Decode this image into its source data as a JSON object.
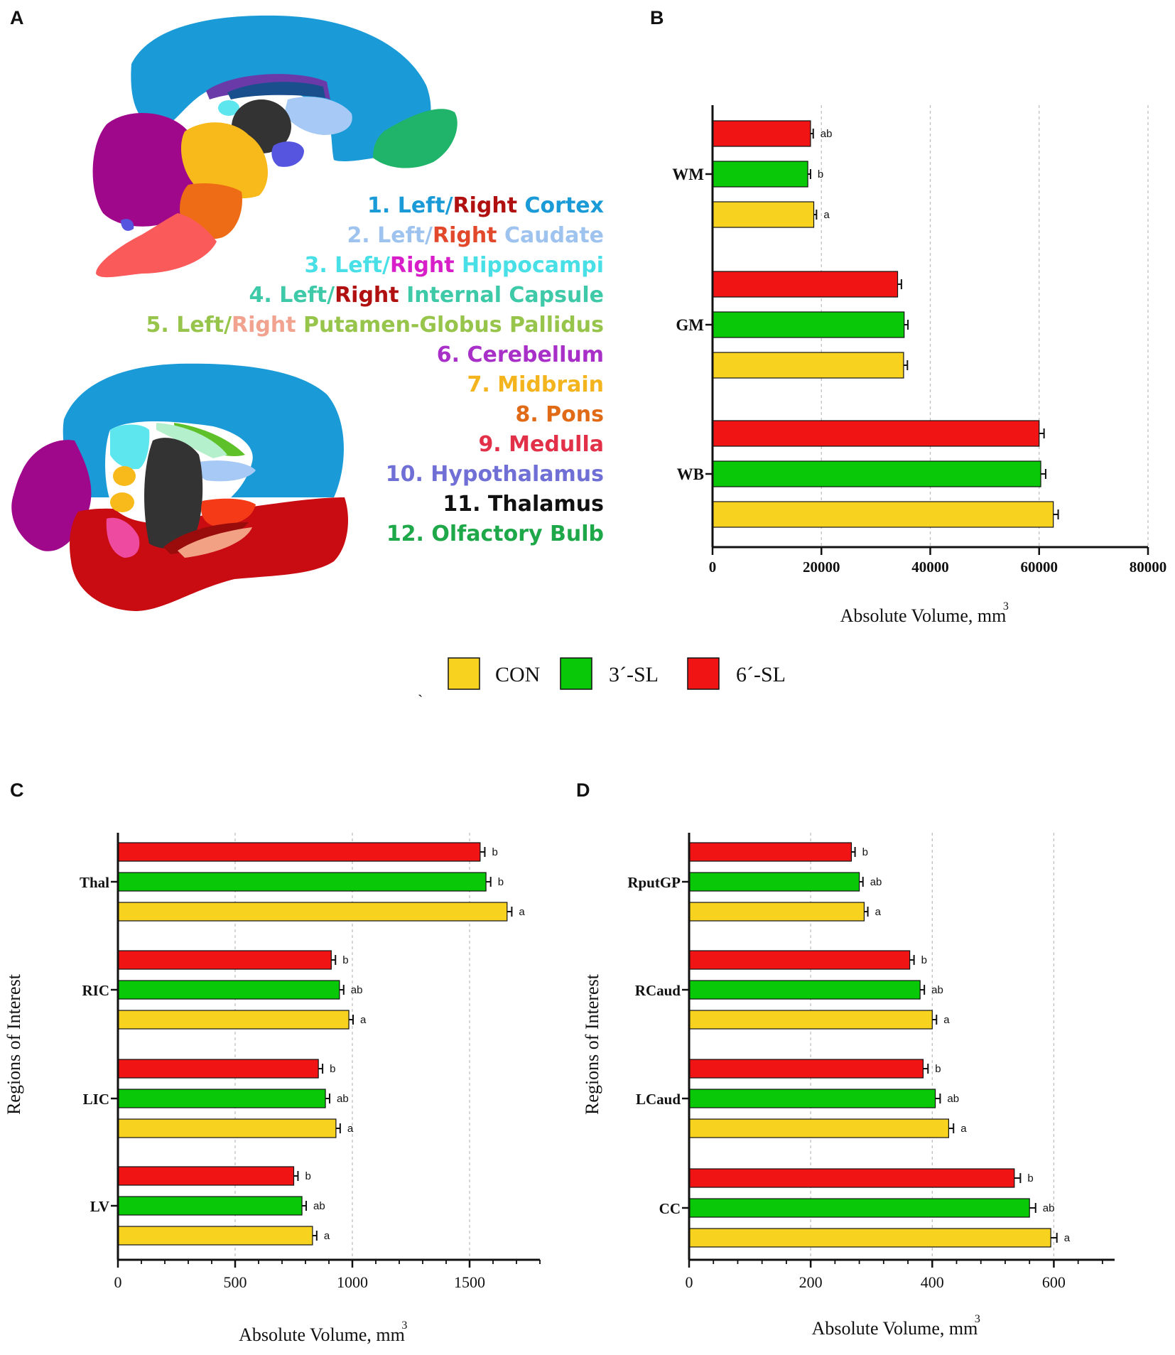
{
  "panels": {
    "a": "A",
    "b": "B",
    "c": "C",
    "d": "D"
  },
  "colors": {
    "con": "#f7d21e",
    "sl3": "#08c808",
    "sl6": "#f11414"
  },
  "region_list": [
    {
      "parts": [
        {
          "text": "1. Left/",
          "color": "#1a9ad6"
        },
        {
          "text": "Right",
          "color": "#b01010"
        },
        {
          "text": " Cortex",
          "color": "#1a9ad6"
        }
      ]
    },
    {
      "parts": [
        {
          "text": "2. Left/",
          "color": "#9ec3ef"
        },
        {
          "text": "Right",
          "color": "#e2492c"
        },
        {
          "text": " Caudate",
          "color": "#9ec3ef"
        }
      ]
    },
    {
      "parts": [
        {
          "text": "3. Left/",
          "color": "#48e0e6"
        },
        {
          "text": "Right",
          "color": "#d81ec8"
        },
        {
          "text": " Hippocampi",
          "color": "#48e0e6"
        }
      ]
    },
    {
      "parts": [
        {
          "text": "4. Left/",
          "color": "#3ec9a8"
        },
        {
          "text": "Right",
          "color": "#b01010"
        },
        {
          "text": " Internal Capsule",
          "color": "#3ec9a8"
        }
      ]
    },
    {
      "parts": [
        {
          "text": "5. Left/",
          "color": "#97c44a"
        },
        {
          "text": "Right",
          "color": "#f2a38f"
        },
        {
          "text": " Putamen-Globus Pallidus",
          "color": "#97c44a"
        }
      ]
    },
    {
      "parts": [
        {
          "text": "6. Cerebellum",
          "color": "#a830c8"
        }
      ]
    },
    {
      "parts": [
        {
          "text": "7. Midbrain",
          "color": "#f3b41e"
        }
      ]
    },
    {
      "parts": [
        {
          "text": "8. Pons",
          "color": "#e06a16"
        }
      ]
    },
    {
      "parts": [
        {
          "text": "9. Medulla",
          "color": "#e23048"
        }
      ]
    },
    {
      "parts": [
        {
          "text": "10. Hypothalamus",
          "color": "#6f6fd6"
        }
      ]
    },
    {
      "parts": [
        {
          "text": "11. Thalamus",
          "color": "#111111"
        }
      ]
    },
    {
      "parts": [
        {
          "text": "12. Olfactory Bulb",
          "color": "#1ea84a"
        }
      ]
    }
  ],
  "legend": {
    "items": [
      {
        "label": "CON",
        "key": "con"
      },
      {
        "label": "3´-SL",
        "key": "sl3"
      },
      {
        "label": "6´-SL",
        "key": "sl6"
      }
    ],
    "stray_mark": "`"
  },
  "chart_data": [
    {
      "id": "B",
      "type": "bar",
      "orientation": "horizontal",
      "title": "",
      "xlabel": "Absolute Volume, mm",
      "xlabel_sup": "3",
      "ylabel": "",
      "xlim": [
        0,
        80000
      ],
      "xticks": [
        0,
        20000,
        40000,
        60000,
        80000
      ],
      "xtick_labels": [
        "0",
        "20000",
        "40000",
        "60000",
        "80000"
      ],
      "categories": [
        "WM",
        "GM",
        "WB"
      ],
      "series": [
        {
          "name": "6´-SL",
          "key": "sl6",
          "values": [
            18000,
            34000,
            60000
          ],
          "errors": [
            500,
            700,
            900
          ],
          "letters": [
            "ab",
            "",
            ""
          ]
        },
        {
          "name": "3´-SL",
          "key": "sl3",
          "values": [
            17500,
            35200,
            60300
          ],
          "errors": [
            500,
            700,
            900
          ],
          "letters": [
            "b",
            "",
            ""
          ]
        },
        {
          "name": "CON",
          "key": "con",
          "values": [
            18600,
            35100,
            62600
          ],
          "errors": [
            500,
            700,
            900
          ],
          "letters": [
            "a",
            "",
            ""
          ]
        }
      ]
    },
    {
      "id": "C",
      "type": "bar",
      "orientation": "horizontal",
      "title": "",
      "xlabel": "Absolute Volume, mm",
      "xlabel_sup": "3",
      "ylabel": "Regions of Interest",
      "xlim": [
        0,
        1800
      ],
      "xticks": [
        0,
        500,
        1000,
        1500
      ],
      "xtick_labels": [
        "0",
        "500",
        "1000",
        "1500"
      ],
      "categories": [
        "Thal",
        "RIC",
        "LIC",
        "LV"
      ],
      "series": [
        {
          "name": "6´-SL",
          "key": "sl6",
          "values": [
            1545,
            910,
            855,
            750
          ],
          "errors": [
            20,
            18,
            18,
            18
          ],
          "letters": [
            "b",
            "b",
            "b",
            "b"
          ]
        },
        {
          "name": "3´-SL",
          "key": "sl3",
          "values": [
            1570,
            945,
            885,
            785
          ],
          "errors": [
            20,
            18,
            18,
            18
          ],
          "letters": [
            "b",
            "ab",
            "ab",
            "ab"
          ]
        },
        {
          "name": "CON",
          "key": "con",
          "values": [
            1660,
            985,
            930,
            830
          ],
          "errors": [
            20,
            18,
            18,
            18
          ],
          "letters": [
            "a",
            "a",
            "a",
            "a"
          ]
        }
      ]
    },
    {
      "id": "D",
      "type": "bar",
      "orientation": "horizontal",
      "title": "",
      "xlabel": "Absolute Volume, mm",
      "xlabel_sup": "3",
      "ylabel": "Regions of Interest",
      "xlim": [
        0,
        700
      ],
      "xticks": [
        0,
        200,
        400,
        600
      ],
      "xtick_labels": [
        "0",
        "200",
        "400",
        "600"
      ],
      "categories": [
        "RputGP",
        "RCaud",
        "LCaud",
        "CC"
      ],
      "series": [
        {
          "name": "6´-SL",
          "key": "sl6",
          "values": [
            267,
            363,
            385,
            535
          ],
          "errors": [
            6,
            7,
            8,
            10
          ],
          "letters": [
            "b",
            "b",
            "b",
            "b"
          ]
        },
        {
          "name": "3´-SL",
          "key": "sl3",
          "values": [
            280,
            380,
            405,
            560
          ],
          "errors": [
            6,
            7,
            8,
            10
          ],
          "letters": [
            "ab",
            "ab",
            "ab",
            "ab"
          ]
        },
        {
          "name": "CON",
          "key": "con",
          "values": [
            288,
            400,
            427,
            595
          ],
          "errors": [
            6,
            7,
            8,
            10
          ],
          "letters": [
            "a",
            "a",
            "a",
            "a"
          ]
        }
      ]
    }
  ]
}
